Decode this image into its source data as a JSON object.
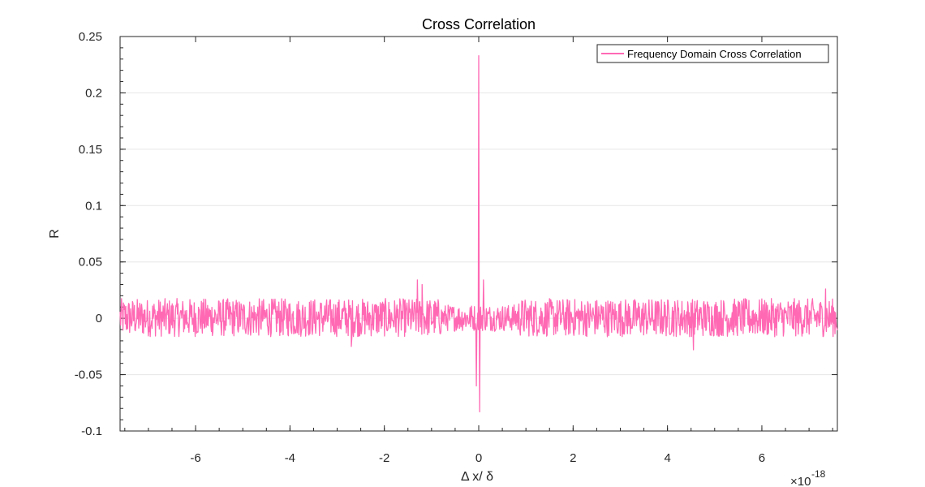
{
  "chart_data": {
    "type": "line",
    "title": "Cross Correlation",
    "xlabel": "Δ x/ δ",
    "ylabel": "R",
    "x_exponent_label": "×10",
    "x_exponent_power": "-18",
    "xlim": [
      -7.6,
      7.6
    ],
    "ylim": [
      -0.1,
      0.25
    ],
    "grid": "horizontal",
    "legend_position": "top-right",
    "x_ticks": [
      -6,
      -4,
      -2,
      0,
      2,
      4,
      6
    ],
    "x_tick_labels": [
      "-6",
      "-4",
      "-2",
      "0",
      "2",
      "4",
      "6"
    ],
    "y_ticks": [
      -0.1,
      -0.05,
      0,
      0.05,
      0.1,
      0.15,
      0.2,
      0.25
    ],
    "y_tick_labels": [
      "-0.1",
      "-0.05",
      "0",
      "0.05",
      "0.1",
      "0.15",
      "0.2",
      "0.25"
    ],
    "series": [
      {
        "name": "Frequency Domain Cross Correlation",
        "color": "#ff69b4",
        "noise_band": [
          -0.018,
          0.022
        ],
        "features": [
          {
            "x": -0.05,
            "y": -0.06
          },
          {
            "x": 0.0,
            "y": 0.233
          },
          {
            "x": 0.02,
            "y": -0.083
          },
          {
            "x": 0.1,
            "y": 0.034
          },
          {
            "x": -1.3,
            "y": 0.034
          },
          {
            "x": -1.2,
            "y": 0.03
          },
          {
            "x": -2.7,
            "y": -0.025
          },
          {
            "x": 4.55,
            "y": -0.028
          },
          {
            "x": 7.35,
            "y": 0.026
          }
        ]
      }
    ]
  }
}
